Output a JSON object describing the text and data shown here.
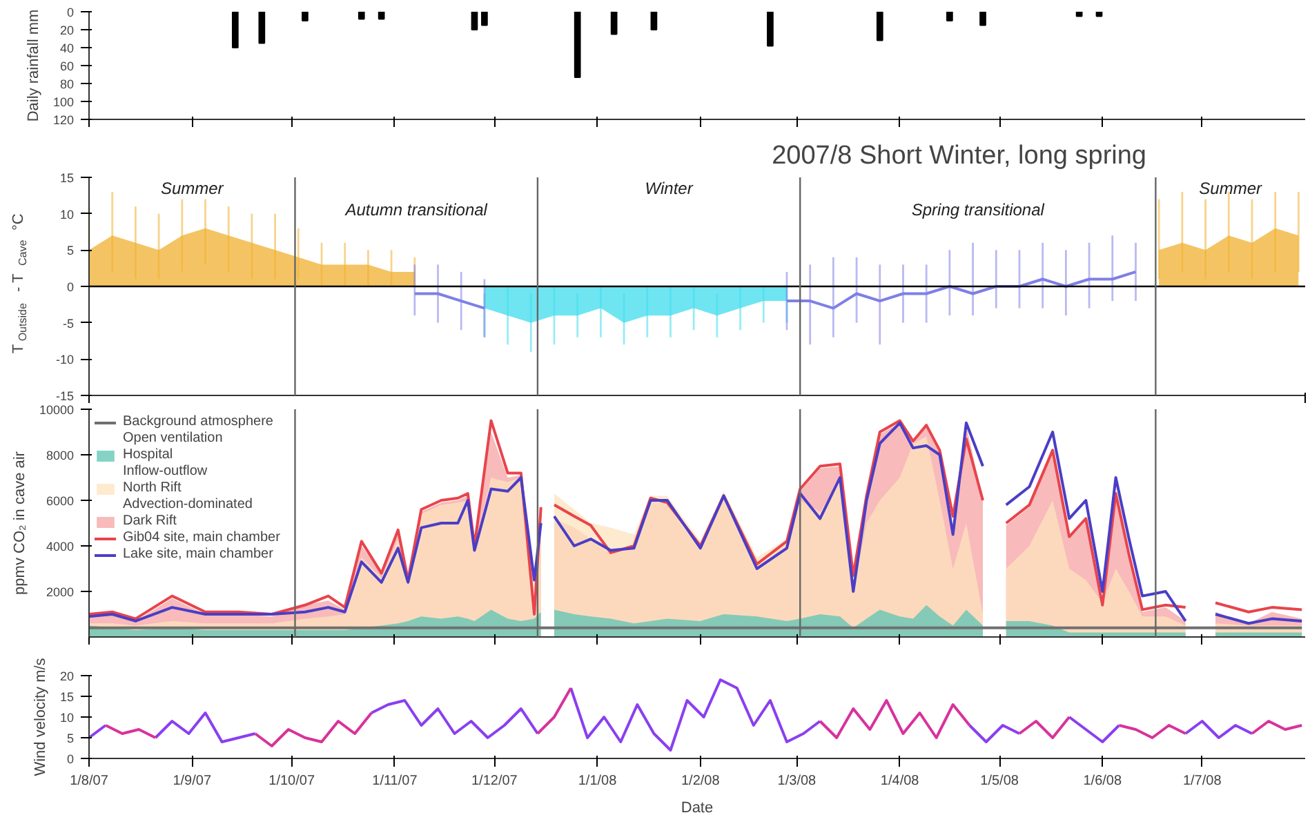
{
  "chart_data": [
    {
      "type": "bar",
      "ylabel": "Daily rainfall mm",
      "xlim": [
        "2007-08-01",
        "2008-08-01"
      ],
      "xticks": [
        {
          "value": "2007-08-01",
          "label": null
        },
        {
          "value": "2007-09-01",
          "label": null
        },
        {
          "value": "2007-10-01",
          "label": null
        },
        {
          "value": "2007-11-01",
          "label": null
        },
        {
          "value": "2007-12-01",
          "label": null
        },
        {
          "value": "2008-01-01",
          "label": null
        },
        {
          "value": "2008-02-01",
          "label": null
        },
        {
          "value": "2008-03-01",
          "label": null
        },
        {
          "value": "2008-04-01",
          "label": null
        },
        {
          "value": "2008-05-01",
          "label": null
        },
        {
          "value": "2008-06-01",
          "label": null
        },
        {
          "value": "2008-07-01",
          "label": null
        }
      ],
      "ylim": [
        120,
        0
      ],
      "yticks": [
        0,
        20,
        40,
        60,
        80,
        100,
        120
      ],
      "tick_labels": "y",
      "color": "#000000",
      "x": [
        "2007-09-14",
        "2007-09-22",
        "2007-10-05",
        "2007-10-22",
        "2007-10-28",
        "2007-11-25",
        "2007-11-28",
        "2007-12-26",
        "2008-01-06",
        "2008-01-18",
        "2008-02-22",
        "2008-03-26",
        "2008-04-16",
        "2008-04-26",
        "2008-05-25",
        "2008-05-31"
      ],
      "values": [
        40,
        35,
        10,
        8,
        8,
        20,
        15,
        73,
        25,
        20,
        38,
        32,
        10,
        15,
        5,
        5
      ]
    },
    {
      "type": "area",
      "title": "2007/8 Short Winter, long spring",
      "ylabel": "T$_{Outside}$ - T$_{Cave}$ °C",
      "xlim": [
        "2007-08-01",
        "2008-08-01"
      ],
      "xticks": [
        {
          "value": "2007-08-01",
          "label": null
        },
        {
          "value": "2008-08-01",
          "label": null
        }
      ],
      "ylim": [
        -15,
        15
      ],
      "yticks": [
        -15,
        -10,
        -5,
        0,
        5,
        10,
        15
      ],
      "tick_labels": "y",
      "x": [
        "2007-08-01",
        "2007-08-08",
        "2007-08-15",
        "2007-08-22",
        "2007-08-29",
        "2007-09-05",
        "2007-09-12",
        "2007-09-19",
        "2007-09-26",
        "2007-10-03",
        "2007-10-10",
        "2007-10-17",
        "2007-10-24",
        "2007-10-31",
        "2007-11-07",
        "2007-11-14",
        "2007-11-21",
        "2007-11-28",
        "2007-12-05",
        "2007-12-12",
        "2007-12-19",
        "2007-12-26",
        "2008-01-02",
        "2008-01-09",
        "2008-01-16",
        "2008-01-23",
        "2008-01-30",
        "2008-02-06",
        "2008-02-13",
        "2008-02-20",
        "2008-02-27",
        "2008-03-05",
        "2008-03-12",
        "2008-03-19",
        "2008-03-26",
        "2008-04-02",
        "2008-04-09",
        "2008-04-16",
        "2008-04-23",
        "2008-04-30",
        "2008-05-07",
        "2008-05-14",
        "2008-05-21",
        "2008-05-28",
        "2008-06-04",
        "2008-06-11",
        "2008-06-18",
        "2008-06-25",
        "2008-07-02",
        "2008-07-09",
        "2008-07-16",
        "2008-07-23",
        "2008-07-30"
      ],
      "series": [
        {
          "type": "area",
          "color": "#f0b030",
          "values": [
            5,
            7,
            6,
            5,
            7,
            8,
            7,
            6,
            5,
            4,
            3,
            3,
            3,
            2,
            2,
            null,
            null,
            null,
            null,
            null,
            null,
            null,
            null,
            null,
            null,
            null,
            null,
            null,
            null,
            null,
            null,
            null,
            null,
            null,
            null,
            null,
            null,
            null,
            null,
            null,
            null,
            null,
            null,
            null,
            null,
            null,
            5,
            6,
            5,
            7,
            6,
            8,
            7
          ],
          "errors": [
            [
              1,
              11
            ],
            [
              2,
              13
            ],
            [
              1,
              11
            ],
            [
              1,
              10
            ],
            [
              2,
              12
            ],
            [
              3,
              12
            ],
            [
              2,
              11
            ],
            [
              1,
              10
            ],
            [
              1,
              10
            ],
            [
              1,
              8
            ],
            [
              0,
              6
            ],
            [
              0,
              6
            ],
            [
              0,
              5
            ],
            [
              0,
              5
            ],
            [
              0,
              4
            ],
            null,
            null,
            null,
            null,
            null,
            null,
            null,
            null,
            null,
            null,
            null,
            null,
            null,
            null,
            null,
            null,
            null,
            null,
            null,
            null,
            null,
            null,
            null,
            null,
            null,
            null,
            null,
            null,
            null,
            null,
            null,
            [
              1,
              12
            ],
            [
              2,
              13
            ],
            [
              1,
              12
            ],
            [
              2,
              13
            ],
            [
              1,
              12
            ],
            [
              2,
              13
            ],
            [
              2,
              13
            ]
          ]
        },
        {
          "type": "line",
          "color": "#7f7fe6",
          "values": [
            null,
            null,
            null,
            null,
            null,
            null,
            null,
            null,
            null,
            null,
            null,
            null,
            null,
            null,
            -1,
            -1,
            -2,
            -3,
            null,
            null,
            null,
            null,
            null,
            null,
            null,
            null,
            null,
            null,
            null,
            null,
            -2,
            -2,
            -3,
            -1,
            -2,
            -1,
            -1,
            0,
            -1,
            0,
            0,
            1,
            0,
            1,
            1,
            2,
            null,
            null,
            null,
            null,
            null,
            null,
            null
          ],
          "errors": [
            null,
            null,
            null,
            null,
            null,
            null,
            null,
            null,
            null,
            null,
            null,
            null,
            null,
            null,
            [
              -4,
              3
            ],
            [
              -5,
              3
            ],
            [
              -6,
              2
            ],
            [
              -7,
              1
            ],
            null,
            null,
            null,
            null,
            null,
            null,
            null,
            null,
            null,
            null,
            null,
            null,
            [
              -6,
              2
            ],
            [
              -8,
              3
            ],
            [
              -7,
              4
            ],
            [
              -5,
              4
            ],
            [
              -8,
              3
            ],
            [
              -5,
              3
            ],
            [
              -5,
              3
            ],
            [
              -4,
              5
            ],
            [
              -4,
              6
            ],
            [
              -3,
              5
            ],
            [
              -3,
              5
            ],
            [
              -3,
              6
            ],
            [
              -4,
              5
            ],
            [
              -3,
              6
            ],
            [
              -2,
              7
            ],
            [
              -2,
              6
            ],
            null,
            null,
            null,
            null,
            null,
            null,
            null
          ]
        },
        {
          "type": "area",
          "color": "#3fdcec",
          "values": [
            null,
            null,
            null,
            null,
            null,
            null,
            null,
            null,
            null,
            null,
            null,
            null,
            null,
            null,
            null,
            null,
            null,
            -3,
            -4,
            -5,
            -4,
            -4,
            -3,
            -5,
            -4,
            -4,
            -3,
            -4,
            -3,
            -2,
            -2,
            null,
            null,
            null,
            null,
            null,
            null,
            null,
            null,
            null,
            null,
            null,
            null,
            null,
            null,
            null,
            null,
            null,
            null,
            null,
            null,
            null,
            null
          ],
          "errors": [
            null,
            null,
            null,
            null,
            null,
            null,
            null,
            null,
            null,
            null,
            null,
            null,
            null,
            null,
            null,
            null,
            null,
            [
              -7,
              -1
            ],
            [
              -8,
              0
            ],
            [
              -9,
              -1
            ],
            [
              -8,
              0
            ],
            [
              -7,
              -1
            ],
            [
              -7,
              0
            ],
            [
              -8,
              -1
            ],
            [
              -7,
              0
            ],
            [
              -7,
              0
            ],
            [
              -6,
              0
            ],
            [
              -7,
              -1
            ],
            [
              -6,
              0
            ],
            [
              -5,
              0
            ],
            [
              -5,
              0
            ],
            null,
            null,
            null,
            null,
            null,
            null,
            null,
            null,
            null,
            null,
            null,
            null,
            null,
            null,
            null,
            null,
            null,
            null,
            null,
            null,
            null,
            null
          ]
        }
      ],
      "ref_lines": [
        {
          "axis": "y",
          "value": 0,
          "color": "#000000"
        },
        {
          "axis": "x",
          "value": "2007-10-02",
          "color": "#666666"
        },
        {
          "axis": "x",
          "value": "2007-12-14",
          "color": "#666666"
        },
        {
          "axis": "x",
          "value": "2008-03-02",
          "color": "#666666"
        },
        {
          "axis": "x",
          "value": "2008-06-17",
          "color": "#666666"
        }
      ],
      "annotations": [
        "Summer",
        "Autumn transitional",
        "Winter",
        "Spring transitional",
        "Summer"
      ]
    },
    {
      "type": "area",
      "ylabel": "ppmv CO₂ in cave air",
      "xlim": [
        "2007-08-01",
        "2008-08-01"
      ],
      "xticks": [
        {
          "value": "2007-08-01",
          "label": null
        },
        {
          "value": "2007-09-01",
          "label": null
        },
        {
          "value": "2007-10-01",
          "label": null
        },
        {
          "value": "2007-11-01",
          "label": null
        },
        {
          "value": "2007-12-01",
          "label": null
        },
        {
          "value": "2008-01-01",
          "label": null
        },
        {
          "value": "2008-02-01",
          "label": null
        },
        {
          "value": "2008-03-01",
          "label": null
        },
        {
          "value": "2008-04-01",
          "label": null
        },
        {
          "value": "2008-05-01",
          "label": null
        },
        {
          "value": "2008-06-01",
          "label": null
        },
        {
          "value": "2008-07-01",
          "label": null
        }
      ],
      "ylim": [
        0,
        10000
      ],
      "yticks": [
        2000,
        4000,
        6000,
        8000,
        10000
      ],
      "tick_labels": "y",
      "legend": "top left",
      "annotations": [
        "Open ventilation",
        "Inflow-outflow",
        "Advection-dominated"
      ],
      "x": [
        "2007-08-01",
        "2007-08-08",
        "2007-08-15",
        "2007-08-26",
        "2007-09-05",
        "2007-09-15",
        "2007-09-25",
        "2007-10-05",
        "2007-10-12",
        "2007-10-17",
        "2007-10-22",
        "2007-10-28",
        "2007-11-02",
        "2007-11-05",
        "2007-11-09",
        "2007-11-15",
        "2007-11-20",
        "2007-11-23",
        "2007-11-25",
        "2007-11-30",
        "2007-12-05",
        "2007-12-09",
        "2007-12-13",
        "2007-12-15",
        "2007-12-16",
        "2007-12-19",
        "2007-12-25",
        "2007-12-30",
        "2008-01-05",
        "2008-01-12",
        "2008-01-17",
        "2008-01-22",
        "2008-02-01",
        "2008-02-08",
        "2008-02-18",
        "2008-02-27",
        "2008-03-02",
        "2008-03-08",
        "2008-03-14",
        "2008-03-18",
        "2008-03-22",
        "2008-03-26",
        "2008-04-01",
        "2008-04-05",
        "2008-04-09",
        "2008-04-13",
        "2008-04-17",
        "2008-04-21",
        "2008-04-26",
        "2008-04-29",
        "2008-05-03",
        "2008-05-10",
        "2008-05-17",
        "2008-05-22",
        "2008-05-27",
        "2008-06-01",
        "2008-06-05",
        "2008-06-09",
        "2008-06-13",
        "2008-06-20",
        "2008-06-26",
        "2008-06-30",
        "2008-07-05",
        "2008-07-15",
        "2008-07-22",
        "2008-07-31"
      ],
      "series": [
        {
          "type": "line",
          "name": "Background atmosphere",
          "color": "#707070",
          "values": [
            400,
            400,
            400,
            400,
            400,
            400,
            400,
            400,
            400,
            400,
            400,
            400,
            400,
            400,
            400,
            400,
            400,
            400,
            400,
            400,
            400,
            400,
            400,
            400,
            400,
            400,
            400,
            400,
            400,
            400,
            400,
            400,
            400,
            400,
            400,
            400,
            400,
            400,
            400,
            400,
            400,
            400,
            400,
            400,
            400,
            400,
            400,
            400,
            400,
            400,
            400,
            400,
            400,
            400,
            400,
            400,
            400,
            400,
            400,
            400,
            400,
            400,
            400,
            400,
            400,
            400
          ]
        },
        {
          "type": "area",
          "name": "Hospital",
          "color": "#5cc4b4",
          "values": [
            500,
            400,
            300,
            400,
            300,
            300,
            300,
            300,
            300,
            300,
            400,
            500,
            600,
            700,
            900,
            800,
            900,
            800,
            700,
            1200,
            800,
            700,
            800,
            1100,
            null,
            1200,
            1000,
            900,
            800,
            600,
            700,
            800,
            700,
            1000,
            900,
            700,
            800,
            1000,
            900,
            400,
            800,
            1200,
            900,
            800,
            1400,
            900,
            500,
            1200,
            500,
            null,
            700,
            700,
            500,
            200,
            200,
            200,
            200,
            200,
            200,
            200,
            200,
            null,
            200,
            200,
            200,
            200
          ]
        },
        {
          "type": "area",
          "name": "North Rift",
          "color": "#fde3bd",
          "values": [
            600,
            600,
            500,
            700,
            600,
            600,
            600,
            800,
            900,
            1000,
            3500,
            2600,
            4300,
            2400,
            5400,
            5800,
            5900,
            6000,
            3800,
            7000,
            6800,
            7000,
            2500,
            5000,
            null,
            6300,
            5600,
            5000,
            4800,
            4500,
            6200,
            6200,
            4200,
            6400,
            3500,
            4300,
            6000,
            5500,
            6800,
            2000,
            5000,
            6000,
            7000,
            8500,
            8800,
            6000,
            3000,
            5000,
            1000,
            null,
            3000,
            4000,
            6000,
            3000,
            2500,
            1500,
            3000,
            2000,
            900,
            900,
            500,
            null,
            600,
            500,
            500,
            500
          ]
        },
        {
          "type": "area",
          "name": "Dark Rift",
          "color": "#f6a3a3",
          "values": [
            900,
            1000,
            700,
            1700,
            1000,
            1000,
            900,
            1400,
            1600,
            1200,
            4000,
            2800,
            4600,
            2500,
            5500,
            5900,
            6000,
            6200,
            3900,
            9000,
            7000,
            7100,
            900,
            5500,
            null,
            5200,
            4800,
            4300,
            3700,
            3900,
            6000,
            5800,
            3800,
            6100,
            3000,
            4100,
            6400,
            7400,
            7500,
            2100,
            6100,
            8900,
            9400,
            8500,
            9200,
            8100,
            4500,
            9300,
            6000,
            null,
            4900,
            5700,
            8100,
            4300,
            5100,
            1300,
            6200,
            3500,
            1100,
            1300,
            700,
            null,
            1100,
            600,
            1100,
            800
          ]
        },
        {
          "type": "line",
          "name": "Gib04 site, main chamber",
          "color": "#e8444c",
          "values": [
            1000,
            1100,
            800,
            1800,
            1100,
            1100,
            1000,
            1400,
            1800,
            1300,
            4200,
            2800,
            4700,
            2500,
            5600,
            6000,
            6100,
            6300,
            4000,
            9500,
            7200,
            7200,
            1000,
            5700,
            null,
            5800,
            5300,
            4900,
            3700,
            4000,
            6100,
            5900,
            4000,
            6200,
            3200,
            4200,
            6500,
            7500,
            7600,
            2700,
            6200,
            9000,
            9500,
            8600,
            9300,
            8200,
            5300,
            8700,
            6000,
            null,
            5000,
            5800,
            8200,
            4400,
            5200,
            1400,
            6300,
            3600,
            1200,
            1400,
            1300,
            null,
            1500,
            1100,
            1300,
            1200
          ]
        },
        {
          "type": "line",
          "name": "Lake site, main chamber",
          "color": "#4a3ec6",
          "values": [
            900,
            1000,
            700,
            1300,
            1000,
            1000,
            1000,
            1100,
            1300,
            1100,
            3300,
            2400,
            3900,
            2400,
            4800,
            5000,
            5000,
            6000,
            3800,
            6500,
            6400,
            7000,
            2500,
            5000,
            null,
            5300,
            4000,
            4300,
            3800,
            3900,
            6000,
            6000,
            3900,
            6200,
            3000,
            3900,
            6300,
            5200,
            7000,
            2000,
            6000,
            8500,
            9400,
            8300,
            8400,
            8000,
            4500,
            9400,
            7500,
            null,
            5800,
            6600,
            9000,
            5200,
            6000,
            2000,
            7000,
            4300,
            1800,
            2000,
            700,
            null,
            1000,
            600,
            800,
            700
          ]
        }
      ],
      "ref_lines": [
        {
          "axis": "x",
          "value": "2007-10-02",
          "color": "#666666"
        },
        {
          "axis": "x",
          "value": "2007-12-14",
          "color": "#666666"
        },
        {
          "axis": "x",
          "value": "2008-03-02",
          "color": "#666666"
        },
        {
          "axis": "x",
          "value": "2008-06-17",
          "color": "#666666"
        }
      ]
    },
    {
      "type": "line",
      "ylabel": "Wind velocity m/s",
      "xlabel": "Date",
      "xlim": [
        "2007-08-01",
        "2008-08-01"
      ],
      "xticks": [
        {
          "value": "2007-08-01",
          "label": "1/8/07"
        },
        {
          "value": "2007-09-01",
          "label": "1/9/07"
        },
        {
          "value": "2007-10-01",
          "label": "1/10/07"
        },
        {
          "value": "2007-11-01",
          "label": "1/11/07"
        },
        {
          "value": "2007-12-01",
          "label": "1/12/07"
        },
        {
          "value": "2008-01-01",
          "label": "1/1/08"
        },
        {
          "value": "2008-02-01",
          "label": "1/2/08"
        },
        {
          "value": "2008-03-01",
          "label": "1/3/08"
        },
        {
          "value": "2008-04-01",
          "label": "1/4/08"
        },
        {
          "value": "2008-05-01",
          "label": "1/5/08"
        },
        {
          "value": "2008-06-01",
          "label": "1/6/08"
        },
        {
          "value": "2008-07-01",
          "label": "1/7/08"
        }
      ],
      "ylim": [
        0,
        20
      ],
      "yticks": [
        0,
        5,
        10,
        15,
        20
      ],
      "x": [
        "2007-08-01",
        "2007-08-06",
        "2007-08-11",
        "2007-08-16",
        "2007-08-21",
        "2007-08-26",
        "2007-08-31",
        "2007-09-05",
        "2007-09-10",
        "2007-09-15",
        "2007-09-20",
        "2007-09-25",
        "2007-09-30",
        "2007-10-05",
        "2007-10-10",
        "2007-10-15",
        "2007-10-20",
        "2007-10-25",
        "2007-10-30",
        "2007-11-04",
        "2007-11-09",
        "2007-11-14",
        "2007-11-19",
        "2007-11-24",
        "2007-11-29",
        "2007-12-04",
        "2007-12-09",
        "2007-12-14",
        "2007-12-19",
        "2007-12-24",
        "2007-12-29",
        "2008-01-03",
        "2008-01-08",
        "2008-01-13",
        "2008-01-18",
        "2008-01-23",
        "2008-01-28",
        "2008-02-02",
        "2008-02-07",
        "2008-02-12",
        "2008-02-17",
        "2008-02-22",
        "2008-02-27",
        "2008-03-03",
        "2008-03-08",
        "2008-03-13",
        "2008-03-18",
        "2008-03-23",
        "2008-03-28",
        "2008-04-02",
        "2008-04-07",
        "2008-04-12",
        "2008-04-17",
        "2008-04-22",
        "2008-04-27",
        "2008-05-02",
        "2008-05-07",
        "2008-05-12",
        "2008-05-17",
        "2008-05-22",
        "2008-05-27",
        "2008-06-01",
        "2008-06-06",
        "2008-06-11",
        "2008-06-16",
        "2008-06-21",
        "2008-06-26",
        "2008-07-01",
        "2008-07-06",
        "2008-07-11",
        "2008-07-16",
        "2008-07-21",
        "2008-07-26",
        "2008-07-31"
      ],
      "series": [
        {
          "color": "#8a3ff0",
          "values": [
            5,
            8,
            null,
            null,
            5,
            9,
            6,
            11,
            4,
            5,
            6,
            null,
            null,
            null,
            null,
            null,
            null,
            11,
            13,
            14,
            8,
            12,
            6,
            9,
            5,
            8,
            12,
            6,
            null,
            17,
            5,
            10,
            4,
            13,
            6,
            2,
            14,
            10,
            19,
            17,
            8,
            14,
            4,
            6,
            9,
            null,
            null,
            null,
            null,
            null,
            null,
            null,
            null,
            8,
            4,
            8,
            6,
            null,
            null,
            10,
            7,
            4,
            8,
            null,
            null,
            null,
            6,
            9,
            5,
            8,
            6,
            null,
            null,
            null
          ]
        },
        {
          "color": "#d8329c",
          "values": [
            null,
            8,
            6,
            7,
            5,
            null,
            null,
            null,
            null,
            null,
            6,
            3,
            7,
            5,
            4,
            9,
            6,
            11,
            null,
            null,
            null,
            null,
            null,
            null,
            null,
            null,
            null,
            6,
            10,
            17,
            null,
            null,
            null,
            null,
            null,
            null,
            null,
            null,
            null,
            null,
            null,
            null,
            null,
            null,
            9,
            5,
            12,
            7,
            14,
            6,
            11,
            5,
            13,
            8,
            null,
            null,
            6,
            9,
            5,
            10,
            null,
            null,
            8,
            7,
            5,
            8,
            6,
            null,
            null,
            null,
            6,
            9,
            7,
            8
          ]
        }
      ]
    }
  ]
}
